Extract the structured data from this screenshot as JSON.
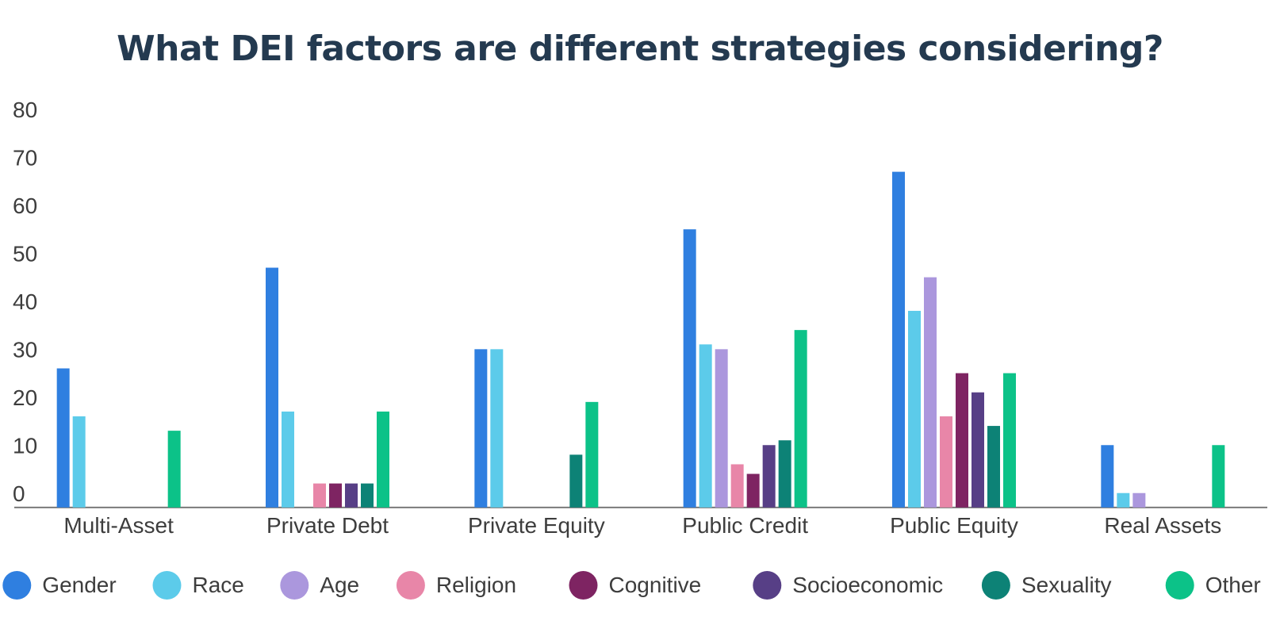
{
  "chart_data": {
    "type": "bar",
    "title": "What DEI factors are different strategies considering?",
    "categories": [
      "Multi-Asset",
      "Private Debt",
      "Private Equity",
      "Public Credit",
      "Public Equity",
      "Real Assets"
    ],
    "series": [
      {
        "name": "Gender",
        "color": "#2f7fe0",
        "values": [
          29,
          50,
          33,
          58,
          70,
          13
        ]
      },
      {
        "name": "Race",
        "color": "#5ccbea",
        "values": [
          19,
          20,
          33,
          34,
          41,
          3
        ]
      },
      {
        "name": "Age",
        "color": "#ab97dd",
        "values": [
          0,
          0,
          0,
          33,
          48,
          3
        ]
      },
      {
        "name": "Religion",
        "color": "#e886a8",
        "values": [
          0,
          5,
          0,
          9,
          19,
          0
        ]
      },
      {
        "name": "Cognitive",
        "color": "#7e2462",
        "values": [
          0,
          5,
          0,
          7,
          28,
          0
        ]
      },
      {
        "name": "Socioeconomic",
        "color": "#573f86",
        "values": [
          0,
          5,
          0,
          13,
          24,
          0
        ]
      },
      {
        "name": "Sexuality",
        "color": "#0d8276",
        "values": [
          0,
          5,
          11,
          14,
          17,
          0
        ]
      },
      {
        "name": "Other",
        "color": "#0cc288",
        "values": [
          16,
          20,
          22,
          37,
          28,
          13
        ]
      }
    ],
    "y_ticks": [
      0,
      10,
      20,
      30,
      40,
      50,
      60,
      70,
      80
    ],
    "ylim": [
      -3,
      83
    ],
    "xlabel": "",
    "ylabel": "",
    "grid": false,
    "legend_position": "bottom"
  }
}
